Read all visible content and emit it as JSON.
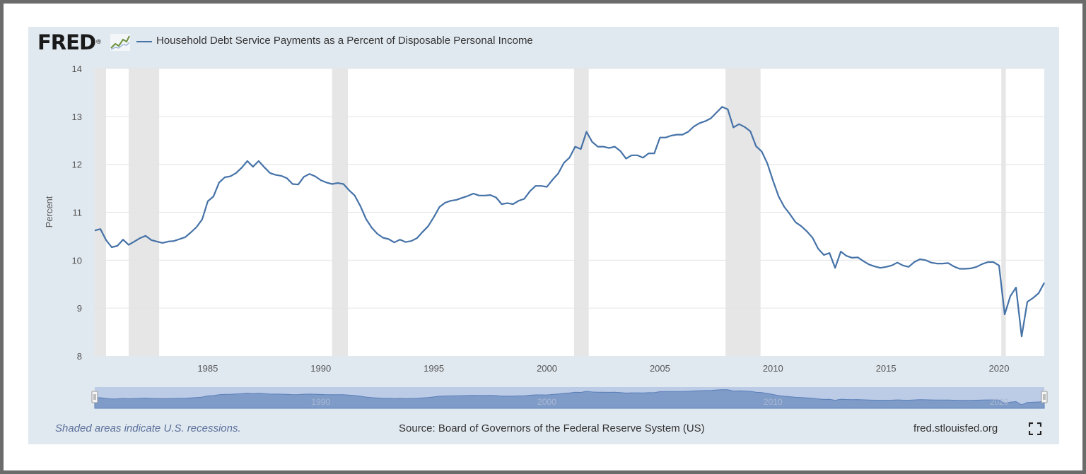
{
  "logo": {
    "text": "FRED",
    "registered": "®"
  },
  "series_title": "Household Debt Service Payments as a Percent of Disposable Personal Income",
  "footer": {
    "recession_note": "Shaded areas indicate U.S. recessions.",
    "source": "Source: Board of Governors of the Federal Reserve System (US)",
    "site": "fred.stlouisfed.org"
  },
  "colors": {
    "line": "#4572a7",
    "recession": "#e6e6e6",
    "panel": "#e1e9f0"
  },
  "chart_data": {
    "type": "line",
    "title": "Household Debt Service Payments as a Percent of Disposable Personal Income",
    "xlabel": "",
    "ylabel": "Percent",
    "xlim": [
      1980.0,
      2022.0
    ],
    "ylim": [
      8,
      14
    ],
    "yticks": [
      8,
      9,
      10,
      11,
      12,
      13,
      14
    ],
    "xticks": [
      1985,
      1990,
      1995,
      2000,
      2005,
      2010,
      2015,
      2020
    ],
    "grid": true,
    "recessions": [
      [
        1980.0,
        1980.5
      ],
      [
        1981.5,
        1982.85
      ],
      [
        1990.5,
        1991.2
      ],
      [
        2001.2,
        2001.85
      ],
      [
        2007.9,
        2009.45
      ],
      [
        2020.1,
        2020.3
      ]
    ],
    "navigator_labels": [
      "1990",
      "2000",
      "2010",
      "2020"
    ],
    "series": [
      {
        "name": "Household Debt Service Payments as a Percent of Disposable Personal Income",
        "x": [
          1980.0,
          1980.25,
          1980.5,
          1980.75,
          1981.0,
          1981.25,
          1981.5,
          1981.75,
          1982.0,
          1982.25,
          1982.5,
          1982.75,
          1983.0,
          1983.25,
          1983.5,
          1983.75,
          1984.0,
          1984.25,
          1984.5,
          1984.75,
          1985.0,
          1985.25,
          1985.5,
          1985.75,
          1986.0,
          1986.25,
          1986.5,
          1986.75,
          1987.0,
          1987.25,
          1987.5,
          1987.75,
          1988.0,
          1988.25,
          1988.5,
          1988.75,
          1989.0,
          1989.25,
          1989.5,
          1989.75,
          1990.0,
          1990.25,
          1990.5,
          1990.75,
          1991.0,
          1991.25,
          1991.5,
          1991.75,
          1992.0,
          1992.25,
          1992.5,
          1992.75,
          1993.0,
          1993.25,
          1993.5,
          1993.75,
          1994.0,
          1994.25,
          1994.5,
          1994.75,
          1995.0,
          1995.25,
          1995.5,
          1995.75,
          1996.0,
          1996.25,
          1996.5,
          1996.75,
          1997.0,
          1997.25,
          1997.5,
          1997.75,
          1998.0,
          1998.25,
          1998.5,
          1998.75,
          1999.0,
          1999.25,
          1999.5,
          1999.75,
          2000.0,
          2000.25,
          2000.5,
          2000.75,
          2001.0,
          2001.25,
          2001.5,
          2001.75,
          2002.0,
          2002.25,
          2002.5,
          2002.75,
          2003.0,
          2003.25,
          2003.5,
          2003.75,
          2004.0,
          2004.25,
          2004.5,
          2004.75,
          2005.0,
          2005.25,
          2005.5,
          2005.75,
          2006.0,
          2006.25,
          2006.5,
          2006.75,
          2007.0,
          2007.25,
          2007.5,
          2007.75,
          2008.0,
          2008.25,
          2008.5,
          2008.75,
          2009.0,
          2009.25,
          2009.5,
          2009.75,
          2010.0,
          2010.25,
          2010.5,
          2010.75,
          2011.0,
          2011.25,
          2011.5,
          2011.75,
          2012.0,
          2012.25,
          2012.5,
          2012.75,
          2013.0,
          2013.25,
          2013.5,
          2013.75,
          2014.0,
          2014.25,
          2014.5,
          2014.75,
          2015.0,
          2015.25,
          2015.5,
          2015.75,
          2016.0,
          2016.25,
          2016.5,
          2016.75,
          2017.0,
          2017.25,
          2017.5,
          2017.75,
          2018.0,
          2018.25,
          2018.5,
          2018.75,
          2019.0,
          2019.25,
          2019.5,
          2019.75,
          2020.0,
          2020.25,
          2020.5,
          2020.75,
          2021.0,
          2021.25,
          2021.5,
          2021.75,
          2022.0
        ],
        "values": [
          10.62,
          10.65,
          10.42,
          10.27,
          10.3,
          10.43,
          10.32,
          10.39,
          10.46,
          10.51,
          10.42,
          10.39,
          10.36,
          10.39,
          10.4,
          10.44,
          10.48,
          10.58,
          10.69,
          10.85,
          11.23,
          11.33,
          11.62,
          11.73,
          11.75,
          11.82,
          11.93,
          12.07,
          11.95,
          12.07,
          11.94,
          11.82,
          11.78,
          11.76,
          11.71,
          11.59,
          11.58,
          11.74,
          11.8,
          11.75,
          11.67,
          11.62,
          11.59,
          11.61,
          11.59,
          11.46,
          11.35,
          11.13,
          10.86,
          10.68,
          10.55,
          10.47,
          10.44,
          10.37,
          10.43,
          10.38,
          10.4,
          10.46,
          10.59,
          10.71,
          10.9,
          11.11,
          11.2,
          11.24,
          11.26,
          11.3,
          11.34,
          11.39,
          11.35,
          11.35,
          11.36,
          11.31,
          11.17,
          11.19,
          11.17,
          11.24,
          11.28,
          11.44,
          11.55,
          11.55,
          11.53,
          11.68,
          11.81,
          12.03,
          12.14,
          12.37,
          12.32,
          12.68,
          12.47,
          12.37,
          12.37,
          12.34,
          12.37,
          12.28,
          12.12,
          12.19,
          12.19,
          12.14,
          12.23,
          12.23,
          12.56,
          12.56,
          12.6,
          12.62,
          12.62,
          12.68,
          12.79,
          12.86,
          12.9,
          12.96,
          13.08,
          13.2,
          13.15,
          12.77,
          12.84,
          12.78,
          12.69,
          12.38,
          12.27,
          12.02,
          11.66,
          11.33,
          11.11,
          10.96,
          10.79,
          10.71,
          10.6,
          10.47,
          10.24,
          10.11,
          10.15,
          9.84,
          10.18,
          10.09,
          10.05,
          10.06,
          9.98,
          9.91,
          9.87,
          9.84,
          9.86,
          9.89,
          9.95,
          9.89,
          9.86,
          9.96,
          10.02,
          10.0,
          9.95,
          9.93,
          9.93,
          9.94,
          9.87,
          9.82,
          9.82,
          9.83,
          9.86,
          9.92,
          9.96,
          9.96,
          9.89,
          8.87,
          9.25,
          9.43,
          8.41,
          9.13,
          9.21,
          9.31,
          9.53
        ]
      }
    ]
  }
}
